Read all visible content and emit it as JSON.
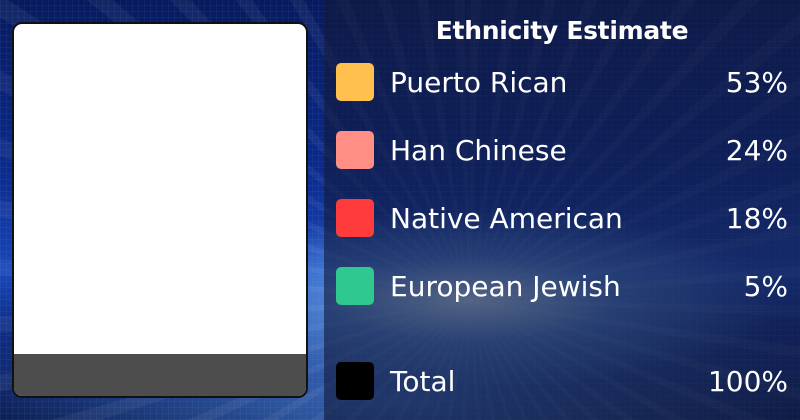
{
  "panel": {
    "title": "Ethnicity Estimate"
  },
  "legend": {
    "items": [
      {
        "label": "Puerto Rican",
        "value": "53%",
        "color": "#ffc04d"
      },
      {
        "label": "Han Chinese",
        "value": "24%",
        "color": "#ff8e84"
      },
      {
        "label": "Native American",
        "value": "18%",
        "color": "#ff3b3b"
      },
      {
        "label": "European Jewish",
        "value": "5%",
        "color": "#2fc98f"
      }
    ],
    "total": {
      "label": "Total",
      "value": "100%",
      "color": "#000000"
    }
  }
}
